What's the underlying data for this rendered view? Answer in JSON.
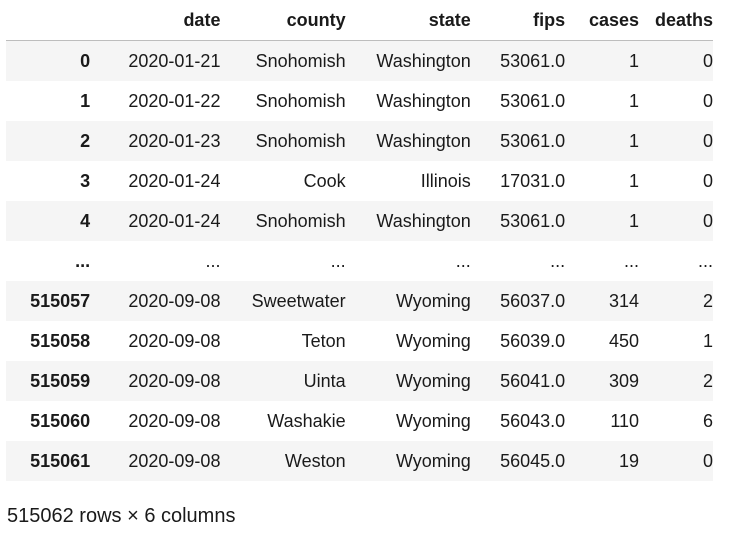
{
  "table": {
    "columns": [
      "date",
      "county",
      "state",
      "fips",
      "cases",
      "deaths"
    ],
    "rows": [
      {
        "index": "0",
        "date": "2020-01-21",
        "county": "Snohomish",
        "state": "Washington",
        "fips": "53061.0",
        "cases": "1",
        "deaths": "0"
      },
      {
        "index": "1",
        "date": "2020-01-22",
        "county": "Snohomish",
        "state": "Washington",
        "fips": "53061.0",
        "cases": "1",
        "deaths": "0"
      },
      {
        "index": "2",
        "date": "2020-01-23",
        "county": "Snohomish",
        "state": "Washington",
        "fips": "53061.0",
        "cases": "1",
        "deaths": "0"
      },
      {
        "index": "3",
        "date": "2020-01-24",
        "county": "Cook",
        "state": "Illinois",
        "fips": "17031.0",
        "cases": "1",
        "deaths": "0"
      },
      {
        "index": "4",
        "date": "2020-01-24",
        "county": "Snohomish",
        "state": "Washington",
        "fips": "53061.0",
        "cases": "1",
        "deaths": "0"
      },
      {
        "index": "...",
        "date": "...",
        "county": "...",
        "state": "...",
        "fips": "...",
        "cases": "...",
        "deaths": "..."
      },
      {
        "index": "515057",
        "date": "2020-09-08",
        "county": "Sweetwater",
        "state": "Wyoming",
        "fips": "56037.0",
        "cases": "314",
        "deaths": "2"
      },
      {
        "index": "515058",
        "date": "2020-09-08",
        "county": "Teton",
        "state": "Wyoming",
        "fips": "56039.0",
        "cases": "450",
        "deaths": "1"
      },
      {
        "index": "515059",
        "date": "2020-09-08",
        "county": "Uinta",
        "state": "Wyoming",
        "fips": "56041.0",
        "cases": "309",
        "deaths": "2"
      },
      {
        "index": "515060",
        "date": "2020-09-08",
        "county": "Washakie",
        "state": "Wyoming",
        "fips": "56043.0",
        "cases": "110",
        "deaths": "6"
      },
      {
        "index": "515061",
        "date": "2020-09-08",
        "county": "Weston",
        "state": "Wyoming",
        "fips": "56045.0",
        "cases": "19",
        "deaths": "0"
      }
    ]
  },
  "footer": {
    "shape_text": "515062 rows × 6 columns"
  }
}
